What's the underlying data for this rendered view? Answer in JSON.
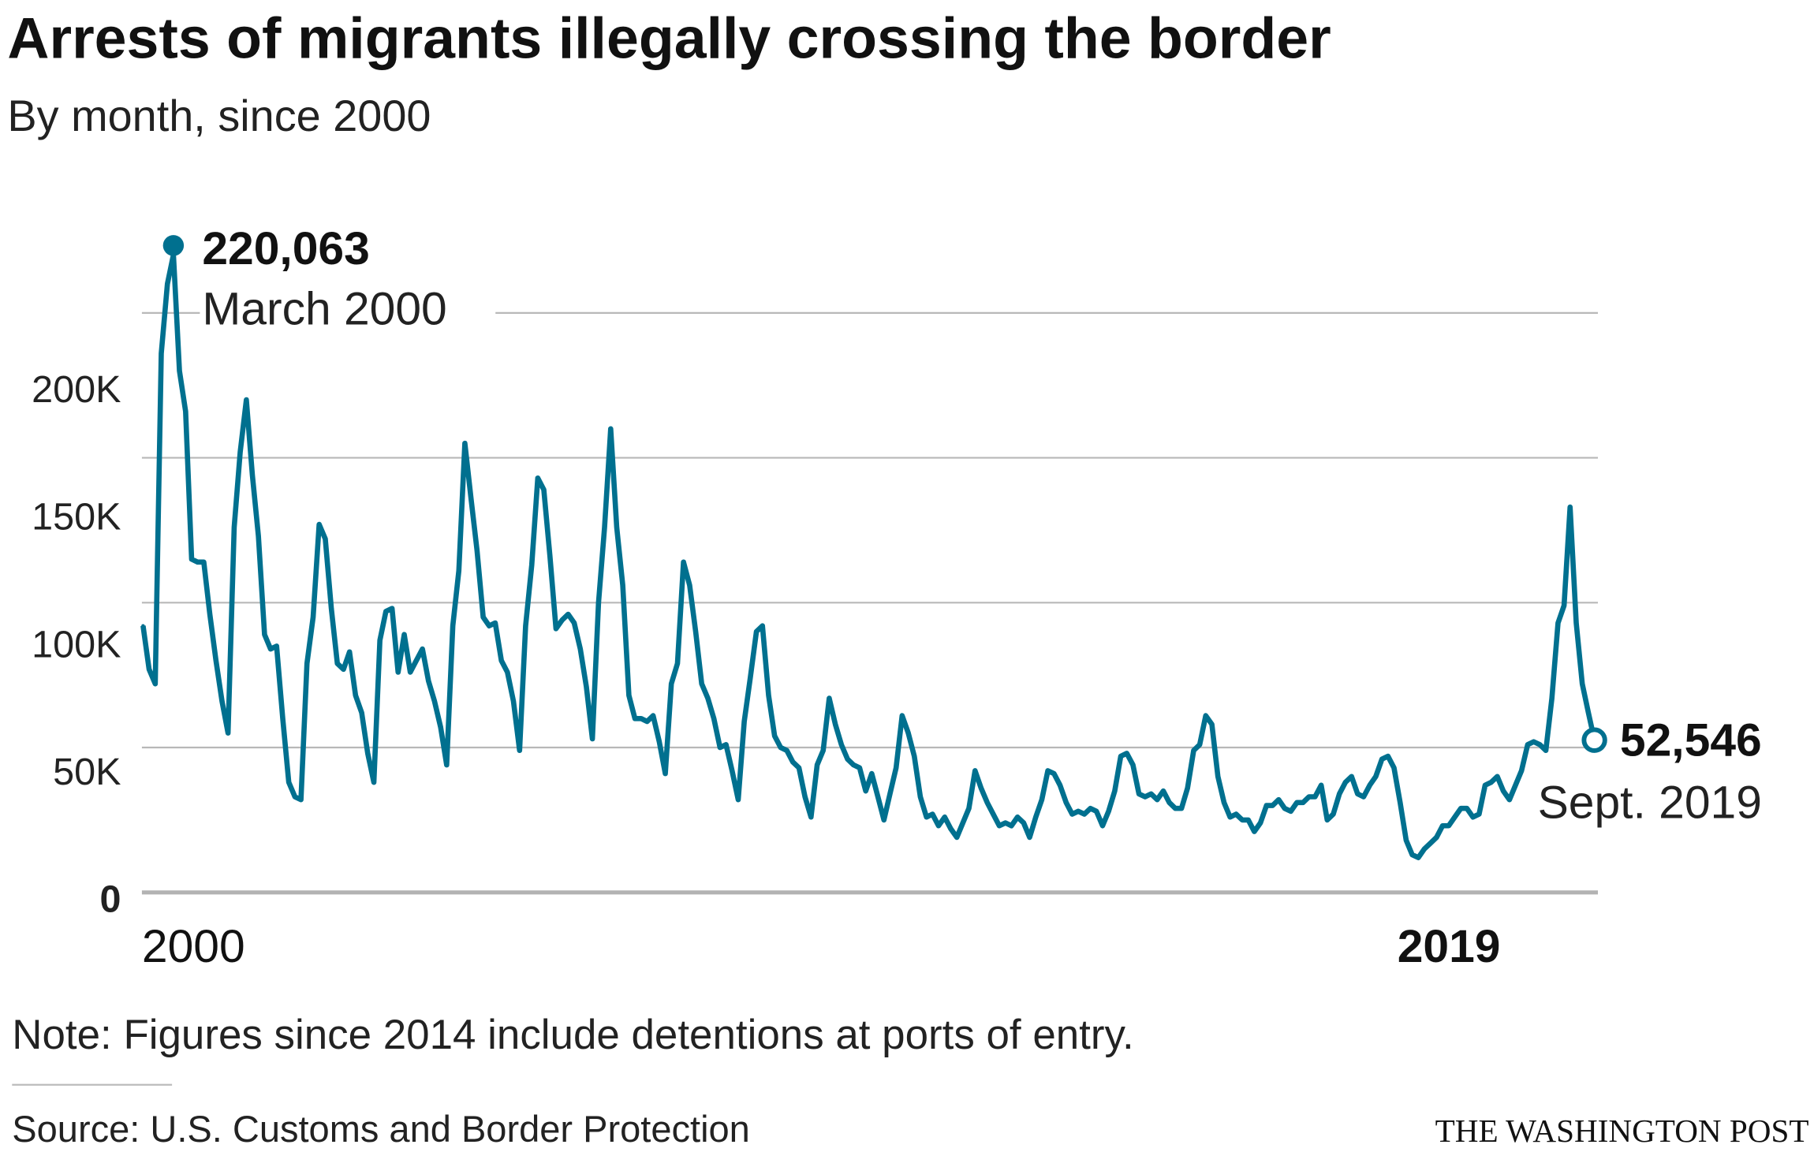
{
  "title": "Arrests of migrants illegally crossing the border",
  "subtitle": "By month, since 2000",
  "note": "Note: Figures since 2014 include detentions at ports of entry.",
  "source": "Source: U.S. Customs and Border Protection",
  "brand": "THE WASHINGTON POST",
  "colors": {
    "line": "#00708f",
    "grid": "#b8b8b8"
  },
  "chart_data": {
    "type": "line",
    "title": "Arrests of migrants illegally crossing the border",
    "subtitle": "By month, since 2000",
    "xlabel": "",
    "ylabel": "",
    "ylim": [
      0,
      200000
    ],
    "grid": true,
    "y_ticks": [
      {
        "value": 0,
        "label": "0"
      },
      {
        "value": 50000,
        "label": "50K"
      },
      {
        "value": 100000,
        "label": "100K"
      },
      {
        "value": 150000,
        "label": "150K"
      },
      {
        "value": 200000,
        "label": "200K"
      }
    ],
    "x_ticks": [
      {
        "label": "2000"
      },
      {
        "label": "2019"
      }
    ],
    "x_start": "1999-10",
    "x_end": "2019-09",
    "frequency": "monthly",
    "values_thousands": [
      92,
      77,
      72,
      186,
      210,
      220.063,
      180,
      166,
      115,
      114,
      114,
      96,
      80,
      66,
      55,
      126,
      152,
      170,
      144,
      123,
      89,
      84,
      85,
      60,
      38,
      33,
      32,
      79,
      95,
      127,
      122,
      98,
      79,
      77,
      83,
      68,
      62,
      48,
      38,
      87,
      97,
      98,
      76,
      89,
      76,
      80,
      84,
      73,
      66,
      57,
      44,
      92,
      111,
      155,
      136,
      118,
      95,
      92,
      93,
      80,
      76,
      66,
      49,
      92,
      113,
      143,
      139,
      116,
      91,
      94,
      96,
      93,
      84,
      71,
      53,
      100,
      126,
      160,
      126,
      106,
      68,
      60,
      60,
      59,
      61,
      52,
      41,
      72,
      79,
      114,
      106,
      90,
      72,
      67,
      60,
      50,
      51,
      42,
      32,
      59,
      74,
      90,
      92,
      68,
      54,
      50,
      49,
      45,
      43,
      33,
      26,
      44,
      49,
      67,
      58,
      51,
      46,
      44,
      43,
      35,
      41,
      33,
      25,
      34,
      43,
      61,
      55,
      47,
      33,
      26,
      27,
      23,
      26,
      22,
      19,
      24,
      29,
      42,
      36,
      31,
      27,
      23,
      24,
      23,
      26,
      24,
      19,
      26,
      32,
      42,
      41,
      37,
      31,
      27,
      28,
      27,
      29,
      28,
      23,
      28,
      35,
      47,
      48,
      44,
      34,
      33,
      34,
      32,
      35,
      31,
      29,
      29,
      36,
      49,
      51,
      61,
      58,
      40,
      31,
      26,
      27,
      25,
      25,
      21,
      24,
      30,
      30,
      32,
      29,
      28,
      31,
      31,
      33,
      33,
      37,
      25,
      27,
      34,
      38,
      40,
      34,
      33,
      37,
      40,
      46,
      47,
      43,
      31,
      18,
      13,
      12,
      15,
      17,
      19,
      23,
      23,
      26,
      29,
      29,
      26,
      27,
      37,
      38,
      40,
      35,
      32,
      37,
      42,
      51,
      52,
      51,
      49,
      67,
      93,
      99,
      133,
      93,
      72,
      62,
      52.546
    ],
    "annotations": [
      {
        "value": "220,063",
        "label": "March 2000",
        "marker": "filled"
      },
      {
        "value": "52,546",
        "label": "Sept. 2019",
        "marker": "open"
      }
    ]
  }
}
